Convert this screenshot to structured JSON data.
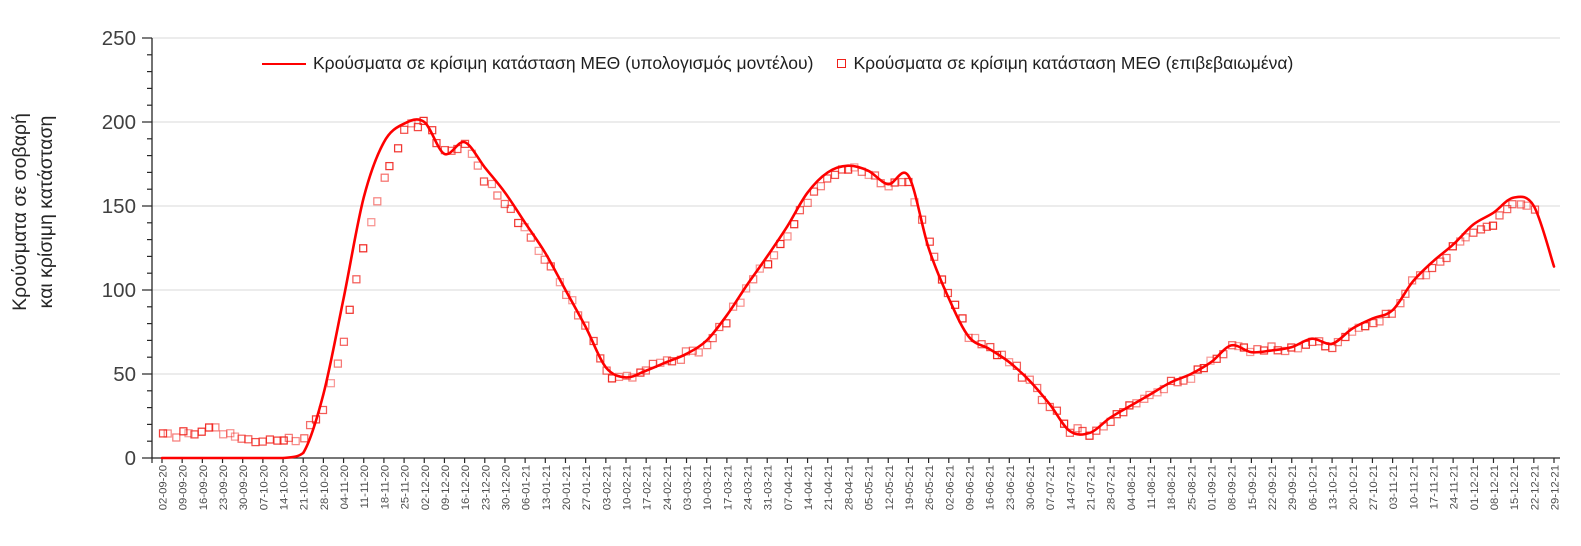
{
  "figure": {
    "kind": "statistical line chart with confirmed-data markers",
    "background": "#ffffff",
    "accent_color": "#fe0000",
    "marker_color": "#f0201a",
    "grid_color": "#d9d9d9",
    "axis_color": "#262626",
    "tick_label_color": "#4d4d4d"
  },
  "y_axis": {
    "title_line1": "Κρούσματα σε σοβαρή",
    "title_line2": "και κρίσιμη κατάσταση",
    "tick_labels": [
      "0",
      "50",
      "100",
      "150",
      "200",
      "250"
    ]
  },
  "chart_data": {
    "type": "line",
    "title": "",
    "xlabel": "",
    "ylabel": "Κρούσματα σε σοβαρή και κρίσιμη κατάσταση",
    "ylim": [
      0,
      250
    ],
    "y_major_step": 50,
    "y_minor_step": 10,
    "grid": "horizontal-major",
    "legend_position": "top",
    "categories": [
      "02-09-20",
      "09-09-20",
      "16-09-20",
      "23-09-20",
      "30-09-20",
      "07-10-20",
      "14-10-20",
      "21-10-20",
      "28-10-20",
      "04-11-20",
      "11-11-20",
      "18-11-20",
      "25-11-20",
      "02-12-20",
      "09-12-20",
      "16-12-20",
      "23-12-20",
      "30-12-20",
      "06-01-21",
      "13-01-21",
      "20-01-21",
      "27-01-21",
      "03-02-21",
      "10-02-21",
      "17-02-21",
      "24-02-21",
      "03-03-21",
      "10-03-21",
      "17-03-21",
      "24-03-21",
      "31-03-21",
      "07-04-21",
      "14-04-21",
      "21-04-21",
      "28-04-21",
      "05-05-21",
      "12-05-21",
      "19-05-21",
      "26-05-21",
      "02-06-21",
      "09-06-21",
      "16-06-21",
      "23-06-21",
      "30-06-21",
      "07-07-21",
      "14-07-21",
      "21-07-21",
      "28-07-21",
      "04-08-21",
      "11-08-21",
      "18-08-21",
      "25-08-21",
      "01-09-21",
      "08-09-21",
      "15-09-21",
      "22-09-21",
      "29-09-21",
      "06-10-21",
      "13-10-21",
      "20-10-21",
      "27-10-21",
      "03-11-21",
      "10-11-21",
      "17-11-21",
      "24-11-21",
      "01-12-21",
      "08-12-21",
      "15-12-21",
      "22-12-21",
      "29-12-21"
    ],
    "series": [
      {
        "name": "Κρούσματα σε κρίσιμη κατάσταση ΜΕΘ (υπολογισμός μοντέλου)",
        "style": "line",
        "color": "#fe0000",
        "values": [
          0,
          0,
          0,
          0,
          0,
          0,
          0,
          3,
          38,
          95,
          155,
          188,
          199,
          200,
          181,
          188,
          173,
          158,
          140,
          122,
          100,
          78,
          54,
          48,
          52,
          57,
          62,
          70,
          85,
          103,
          120,
          138,
          158,
          170,
          174,
          171,
          163,
          168,
          125,
          95,
          72,
          65,
          57,
          46,
          32,
          16,
          15,
          24,
          31,
          38,
          45,
          50,
          57,
          67,
          63,
          64,
          66,
          71,
          68,
          77,
          83,
          88,
          105,
          117,
          127,
          139,
          146,
          155,
          150,
          114
        ]
      },
      {
        "name": "Κρούσματα σε κρίσιμη κατάσταση ΜΕΘ (επιβεβαιωμένα)",
        "style": "scatter-open-square",
        "color": "#f0201a",
        "values": [
          13,
          14,
          17,
          16,
          11,
          9,
          10,
          12,
          30,
          70,
          125,
          165,
          197,
          199,
          184,
          186,
          166,
          152,
          136,
          119,
          98,
          80,
          50,
          47,
          53,
          57,
          62,
          66,
          82,
          100,
          117,
          133,
          152,
          166,
          172,
          170,
          161,
          164,
          128,
          98,
          73,
          66,
          57,
          46,
          31,
          17,
          14,
          23,
          30,
          37,
          46,
          49,
          57,
          66,
          64,
          66,
          65,
          69,
          66,
          75,
          82,
          86,
          104,
          114,
          124,
          135,
          139,
          151,
          149,
          null
        ]
      }
    ]
  }
}
